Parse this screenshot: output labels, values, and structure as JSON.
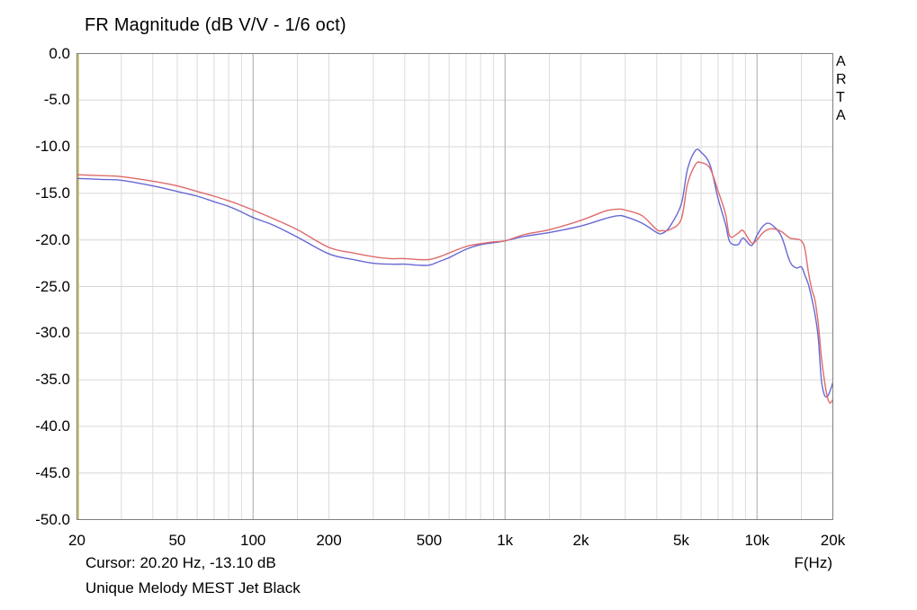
{
  "title": "FR Magnitude (dB V/V - 1/6 oct)",
  "watermark": "ARTA",
  "footer": {
    "cursor_text": "Cursor: 20.20 Hz, -13.10 dB",
    "device_name": "Unique Melody MEST Jet Black",
    "x_axis_label": "F(Hz)"
  },
  "chart_data": {
    "type": "line",
    "x_scale": "log",
    "x_range": [
      20,
      20000
    ],
    "y_range": [
      -50,
      0
    ],
    "grid": true,
    "y_tick_labels": [
      "0.0",
      "-5.0",
      "-10.0",
      "-15.0",
      "-20.0",
      "-25.0",
      "-30.0",
      "-35.0",
      "-40.0",
      "-45.0",
      "-50.0"
    ],
    "x_ticks": [
      {
        "f": 20,
        "label": "20"
      },
      {
        "f": 50,
        "label": "50"
      },
      {
        "f": 100,
        "label": "100"
      },
      {
        "f": 200,
        "label": "200"
      },
      {
        "f": 500,
        "label": "500"
      },
      {
        "f": 1000,
        "label": "1k"
      },
      {
        "f": 2000,
        "label": "2k"
      },
      {
        "f": 5000,
        "label": "5k"
      },
      {
        "f": 10000,
        "label": "10k"
      },
      {
        "f": 20000,
        "label": "20k"
      }
    ],
    "x_gridlines_minor": [
      30,
      40,
      50,
      60,
      70,
      80,
      90,
      150,
      200,
      300,
      400,
      500,
      600,
      700,
      800,
      900,
      1500,
      2000,
      3000,
      4000,
      5000,
      6000,
      7000,
      8000,
      9000,
      15000
    ],
    "x_gridlines_major": [
      100,
      1000,
      10000
    ],
    "style": {
      "h_grid_color": "#d6d6d6",
      "v_grid_minor_color": "#dcdcdc",
      "v_grid_major_color": "#a6a6a6",
      "border_color": "#7f7f7f",
      "left_axis_accent_color": "#ccc67a",
      "red_series_color": "#e06a6a",
      "blue_series_color": "#6868d4"
    },
    "x": [
      20,
      25,
      30,
      40,
      50,
      60,
      70,
      80,
      90,
      100,
      120,
      150,
      200,
      250,
      300,
      350,
      400,
      450,
      500,
      550,
      600,
      700,
      800,
      900,
      1000,
      1200,
      1500,
      2000,
      2500,
      2800,
      3000,
      3500,
      4000,
      4200,
      4500,
      5000,
      5300,
      5700,
      6000,
      6500,
      7000,
      7500,
      7800,
      8400,
      8800,
      9500,
      10000,
      10500,
      11000,
      11600,
      12500,
      13500,
      14300,
      15000,
      15500,
      16000,
      16500,
      17000,
      17500,
      18000,
      18500,
      19000,
      19500,
      20000
    ],
    "series": [
      {
        "name": "blue",
        "color_key": "blue_series_color",
        "y": [
          -13.4,
          -13.5,
          -13.6,
          -14.2,
          -14.8,
          -15.3,
          -15.9,
          -16.4,
          -17.0,
          -17.6,
          -18.4,
          -19.7,
          -21.5,
          -22.1,
          -22.5,
          -22.6,
          -22.6,
          -22.7,
          -22.7,
          -22.3,
          -21.9,
          -21.0,
          -20.5,
          -20.3,
          -20.1,
          -19.6,
          -19.2,
          -18.5,
          -17.7,
          -17.4,
          -17.5,
          -18.2,
          -19.2,
          -19.3,
          -18.6,
          -16.2,
          -12.4,
          -10.4,
          -10.6,
          -11.9,
          -15.5,
          -18.3,
          -20.2,
          -20.5,
          -19.8,
          -20.6,
          -19.5,
          -18.6,
          -18.2,
          -18.5,
          -19.6,
          -22.3,
          -23.0,
          -22.9,
          -23.8,
          -24.8,
          -26.3,
          -28.0,
          -30.5,
          -35.0,
          -36.6,
          -36.8,
          -36.2,
          -35.3
        ]
      },
      {
        "name": "red",
        "color_key": "red_series_color",
        "y": [
          -13.0,
          -13.1,
          -13.2,
          -13.7,
          -14.2,
          -14.8,
          -15.3,
          -15.8,
          -16.3,
          -16.8,
          -17.7,
          -18.9,
          -20.8,
          -21.4,
          -21.8,
          -22.0,
          -22.0,
          -22.1,
          -22.1,
          -21.8,
          -21.4,
          -20.7,
          -20.4,
          -20.2,
          -20.1,
          -19.4,
          -18.9,
          -17.9,
          -16.9,
          -16.7,
          -16.8,
          -17.4,
          -18.9,
          -19.0,
          -18.9,
          -17.8,
          -14.0,
          -11.9,
          -11.7,
          -12.3,
          -14.7,
          -17.2,
          -19.6,
          -19.3,
          -19.0,
          -20.3,
          -20.0,
          -19.3,
          -18.9,
          -18.8,
          -19.1,
          -19.8,
          -19.9,
          -20.1,
          -21.0,
          -23.5,
          -25.3,
          -26.5,
          -29.0,
          -32.5,
          -35.0,
          -36.8,
          -37.5,
          -37.1
        ]
      }
    ]
  }
}
